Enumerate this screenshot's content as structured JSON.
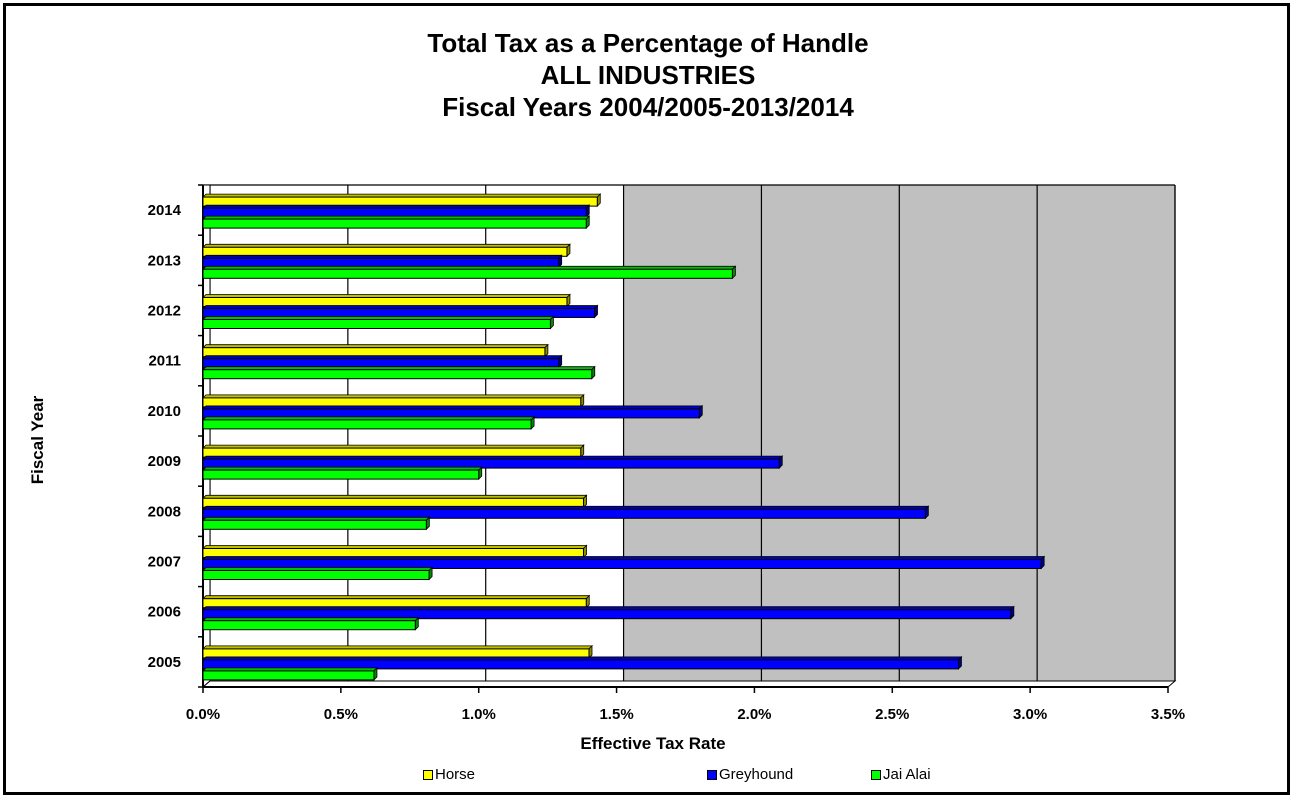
{
  "chart_data": {
    "type": "bar",
    "orientation": "horizontal",
    "title_lines": [
      "Total Tax as a Percentage of Handle",
      "ALL INDUSTRIES",
      "Fiscal Years 2004/2005-2013/2014"
    ],
    "xlabel": "Effective Tax Rate",
    "ylabel": "Fiscal Year",
    "xlim": [
      0,
      3.5
    ],
    "x_ticks": [
      "0.0%",
      "0.5%",
      "1.0%",
      "1.5%",
      "2.0%",
      "2.5%",
      "3.0%",
      "3.5%"
    ],
    "categories": [
      "2014",
      "2013",
      "2012",
      "2011",
      "2010",
      "2009",
      "2008",
      "2007",
      "2006",
      "2005"
    ],
    "series": [
      {
        "name": "Horse",
        "color": "#ffff00",
        "values": [
          1.43,
          1.32,
          1.32,
          1.24,
          1.37,
          1.37,
          1.38,
          1.38,
          1.39,
          1.4
        ]
      },
      {
        "name": "Greyhound",
        "color": "#0000ff",
        "values": [
          1.39,
          1.29,
          1.42,
          1.29,
          1.8,
          2.09,
          2.62,
          3.04,
          2.93,
          2.74
        ]
      },
      {
        "name": "Jai Alai",
        "color": "#00ff00",
        "values": [
          1.39,
          1.92,
          1.26,
          1.41,
          1.19,
          1.0,
          0.81,
          0.82,
          0.77,
          0.62
        ]
      }
    ],
    "grid": true,
    "legend_position": "bottom",
    "plot_background": "#c0c0c0",
    "shaded_from": 1.5
  }
}
